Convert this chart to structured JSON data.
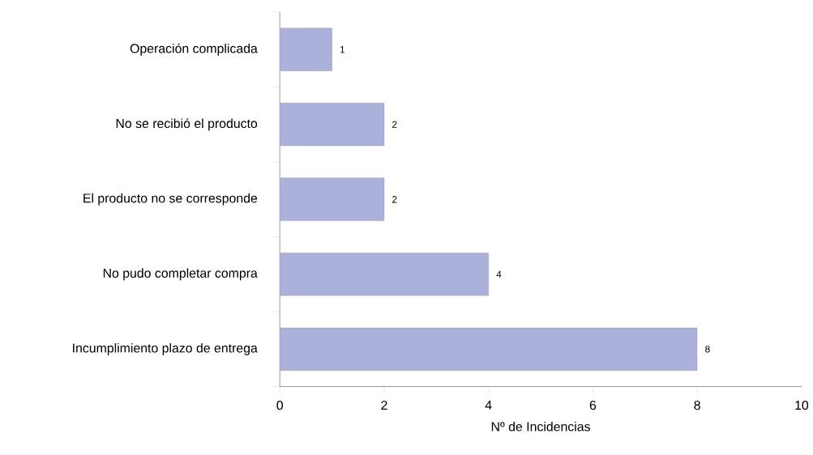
{
  "chart_data": {
    "type": "bar",
    "orientation": "horizontal",
    "xlabel": "Nº de Incidencias",
    "categories": [
      "Operación complicada",
      "No se recibió el producto",
      "El producto no se corresponde",
      "No pudo completar compra",
      "Incumplimiento plazo de entrega"
    ],
    "values": [
      1,
      2,
      2,
      4,
      8
    ],
    "color": "#abb1da",
    "data_labels": true,
    "xlim": [
      0,
      10
    ],
    "xticks": [
      0,
      2,
      4,
      6,
      8,
      10
    ],
    "grid": false
  }
}
